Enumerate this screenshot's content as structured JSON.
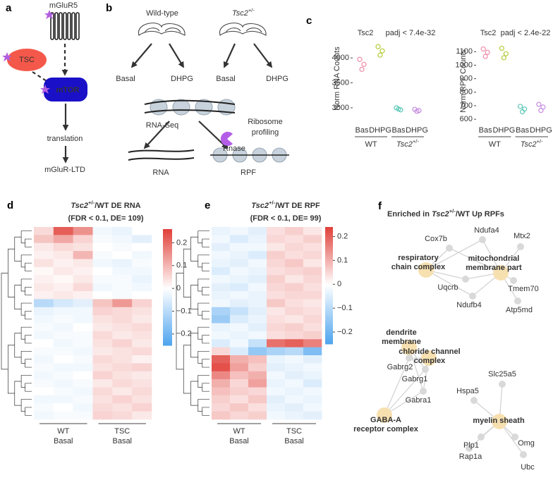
{
  "panel_labels": [
    "a",
    "b",
    "c",
    "d",
    "e",
    "f"
  ],
  "pathway": {
    "receptor": "mGluR5",
    "inhibitor": "TSC",
    "kinase": "mTOR",
    "process": "translation",
    "outcome": "mGluR-LTD"
  },
  "design": {
    "genotypes": [
      {
        "text": "Wild-type"
      },
      {
        "text": "Tsc2",
        "sup": "+/-"
      }
    ],
    "conditions": [
      "Basal",
      "DHPG",
      "Basal",
      "DHPG"
    ],
    "methods": {
      "rna": "RNA-Seq",
      "ribo": [
        "Ribosome",
        "profiling"
      ]
    },
    "enzyme": "Rnase",
    "products": [
      "RNA",
      "RPF"
    ]
  },
  "chart_data": [
    {
      "type": "strip",
      "title": "Tsc2",
      "annotation": "padj < 7.4e-32",
      "y_label": "Norm RNA Counts",
      "categories": [
        "Bas",
        "DHPG",
        "Bas",
        "DHPG"
      ],
      "groups": [
        {
          "text": "WT"
        },
        {
          "text": "Tsc2",
          "sup": "+/-"
        }
      ],
      "series": [
        {
          "color": "#f08ca8",
          "values": [
            3970,
            3870,
            3770
          ]
        },
        {
          "color": "#b5cc3a",
          "values": [
            4225,
            4140,
            4055
          ]
        },
        {
          "color": "#5cc8b8",
          "values": [
            3000,
            2960,
            2975
          ]
        },
        {
          "color": "#c58be0",
          "values": [
            2970,
            2945,
            2930
          ]
        }
      ],
      "ylim": [
        2830,
        4340
      ],
      "yticks": [
        3000,
        3500,
        4000
      ]
    },
    {
      "type": "strip",
      "title": "Tsc2",
      "annotation": "padj < 2.4e-22",
      "y_label": "Norm RPF Counts",
      "categories": [
        "Bas",
        "DHPG",
        "Bas",
        "DHPG"
      ],
      "groups": [
        {
          "text": "WT"
        },
        {
          "text": "Tsc2",
          "sup": "+/-"
        }
      ],
      "series": [
        {
          "color": "#f08ca8",
          "values": [
            1120,
            1095,
            1065
          ]
        },
        {
          "color": "#b5cc3a",
          "values": [
            1125,
            1085,
            1055
          ]
        },
        {
          "color": "#5cc8b8",
          "values": [
            695,
            675,
            655
          ]
        },
        {
          "color": "#c58be0",
          "values": [
            710,
            690,
            665
          ]
        }
      ],
      "ylim": [
        585,
        1180
      ],
      "yticks": [
        600,
        700,
        800,
        900,
        1000,
        1100
      ]
    },
    {
      "type": "heatmap",
      "title": {
        "text": "Tsc2",
        "sup": "+/-",
        "after": "/WT DE RNA"
      },
      "subtitle": "(FDR < 0.1, DE= 109)",
      "column_groups": [
        [
          "WT",
          "Basal"
        ],
        [
          "TSC",
          "Basal"
        ]
      ],
      "colormap": [
        "#4da3ee",
        "#ffffff",
        "#e0413a"
      ],
      "clim": [
        -0.25,
        0.26
      ],
      "cticks": [
        0.2,
        0.1,
        0,
        {
          "value": -0.1,
          "label": "−0.1"
        },
        {
          "value": -0.2,
          "label": "−0.2"
        }
      ],
      "values": [
        [
          0.05,
          0.22,
          0.15,
          -0.02,
          -0.03,
          0.0
        ],
        [
          0.08,
          0.12,
          0.06,
          -0.01,
          -0.02,
          -0.04
        ],
        [
          0.03,
          0.05,
          0.04,
          0.0,
          -0.01,
          0.0
        ],
        [
          0.02,
          0.03,
          0.1,
          -0.01,
          0.0,
          -0.02
        ],
        [
          0.04,
          0.02,
          0.03,
          -0.02,
          -0.03,
          -0.01
        ],
        [
          0.01,
          0.03,
          0.02,
          0.0,
          -0.02,
          -0.02
        ],
        [
          0.02,
          0.01,
          0.03,
          -0.01,
          -0.01,
          -0.03
        ],
        [
          0.03,
          0.02,
          0.05,
          -0.02,
          -0.01,
          -0.02
        ],
        [
          0.02,
          0.03,
          0.02,
          0.0,
          -0.01,
          0.0
        ],
        [
          -0.1,
          -0.06,
          -0.04,
          0.08,
          0.14,
          0.06
        ],
        [
          -0.03,
          -0.02,
          -0.02,
          0.06,
          0.05,
          0.04
        ],
        [
          -0.02,
          -0.01,
          -0.02,
          0.04,
          0.05,
          0.03
        ],
        [
          -0.01,
          -0.02,
          0.0,
          0.03,
          0.04,
          0.05
        ],
        [
          -0.02,
          -0.01,
          -0.01,
          0.05,
          0.03,
          0.04
        ],
        [
          0.0,
          -0.02,
          -0.01,
          0.04,
          0.06,
          0.03
        ],
        [
          -0.01,
          -0.01,
          -0.02,
          0.03,
          0.04,
          0.05
        ],
        [
          -0.02,
          0.0,
          -0.01,
          0.05,
          0.04,
          0.02
        ],
        [
          -0.01,
          -0.02,
          -0.02,
          0.04,
          0.05,
          0.06
        ],
        [
          -0.02,
          -0.01,
          0.0,
          0.06,
          0.04,
          0.03
        ],
        [
          -0.01,
          -0.02,
          -0.01,
          0.03,
          0.05,
          0.04
        ],
        [
          0.0,
          -0.01,
          -0.02,
          0.05,
          0.03,
          0.05
        ],
        [
          -0.02,
          -0.02,
          -0.01,
          0.04,
          0.06,
          0.04
        ],
        [
          -0.01,
          0.0,
          -0.02,
          0.05,
          0.04,
          0.06
        ],
        [
          -0.02,
          -0.01,
          -0.01,
          0.06,
          0.05,
          0.03
        ]
      ]
    },
    {
      "type": "heatmap",
      "title": {
        "text": "Tsc2",
        "sup": "+/-",
        "after": "/WT DE RPF"
      },
      "subtitle": "(FDR < 0.1, DE= 99)",
      "column_groups": [
        [
          "WT",
          "Basal"
        ],
        [
          "TSC",
          "Basal"
        ]
      ],
      "colormap": [
        "#4da3ee",
        "#ffffff",
        "#e0413a"
      ],
      "clim": [
        -0.25,
        0.24
      ],
      "cticks": [
        0.2,
        0.1,
        0,
        {
          "value": -0.1,
          "label": "−0.1"
        },
        {
          "value": -0.2,
          "label": "−0.2"
        }
      ],
      "values": [
        [
          -0.03,
          -0.02,
          -0.04,
          0.04,
          0.06,
          0.03
        ],
        [
          -0.02,
          -0.05,
          -0.03,
          0.05,
          0.04,
          0.06
        ],
        [
          -0.04,
          -0.02,
          -0.02,
          0.03,
          0.05,
          0.04
        ],
        [
          -0.02,
          -0.03,
          -0.05,
          0.06,
          0.04,
          0.05
        ],
        [
          -0.03,
          -0.04,
          -0.02,
          0.05,
          0.07,
          0.03
        ],
        [
          -0.05,
          -0.02,
          -0.03,
          0.04,
          0.05,
          0.06
        ],
        [
          -0.02,
          -0.03,
          -0.04,
          0.06,
          0.03,
          0.05
        ],
        [
          -0.04,
          -0.05,
          -0.02,
          0.05,
          0.06,
          0.04
        ],
        [
          -0.03,
          -0.02,
          -0.03,
          0.04,
          0.05,
          0.05
        ],
        [
          -0.02,
          -0.04,
          -0.03,
          0.07,
          0.04,
          0.03
        ],
        [
          -0.12,
          -0.08,
          -0.04,
          0.03,
          0.05,
          0.04
        ],
        [
          -0.14,
          -0.05,
          -0.03,
          0.04,
          0.03,
          0.05
        ],
        [
          -0.03,
          -0.02,
          -0.04,
          0.05,
          0.06,
          0.04
        ],
        [
          -0.02,
          -0.03,
          -0.02,
          0.04,
          0.05,
          0.06
        ],
        [
          -0.05,
          -0.02,
          -0.08,
          0.18,
          0.2,
          0.16
        ],
        [
          0.05,
          -0.05,
          -0.15,
          -0.12,
          -0.1,
          -0.18
        ],
        [
          0.2,
          0.1,
          0.08,
          -0.03,
          -0.02,
          -0.04
        ],
        [
          0.22,
          0.12,
          0.06,
          -0.04,
          -0.03,
          -0.02
        ],
        [
          0.15,
          0.08,
          0.1,
          -0.02,
          -0.04,
          -0.03
        ],
        [
          0.1,
          0.05,
          0.12,
          -0.03,
          -0.02,
          -0.05
        ],
        [
          0.08,
          0.06,
          0.05,
          -0.02,
          -0.03,
          -0.02
        ],
        [
          0.06,
          0.04,
          0.07,
          -0.04,
          -0.02,
          -0.03
        ],
        [
          0.05,
          0.07,
          0.04,
          -0.03,
          -0.04,
          -0.02
        ],
        [
          0.07,
          0.05,
          0.06,
          -0.02,
          -0.03,
          -0.04
        ]
      ]
    }
  ],
  "network": {
    "title": {
      "before": "Enriched in ",
      "text": "Tsc2",
      "sup": "+/-",
      "after": "/WT Up RPFs"
    },
    "nodes": [
      {
        "kind": "gene",
        "label": [
          "Cox7b"
        ]
      },
      {
        "kind": "gene",
        "label": [
          "Ndufa4"
        ]
      },
      {
        "kind": "gene",
        "label": [
          "Mtx2"
        ]
      },
      {
        "kind": "term",
        "label": [
          "respiratory",
          "chain complex"
        ]
      },
      {
        "kind": "term",
        "label": [
          "mitochondrial",
          "membrane part"
        ]
      },
      {
        "kind": "gene",
        "label": [
          "Uqcrb"
        ]
      },
      {
        "kind": "gene",
        "label": [
          "Tmem70"
        ]
      },
      {
        "kind": "gene",
        "label": [
          "Ndufb4"
        ]
      },
      {
        "kind": "gene",
        "label": [
          "Atp5md"
        ]
      },
      {
        "kind": "term",
        "label": [
          "dendrite",
          "membrane"
        ]
      },
      {
        "kind": "term",
        "label": [
          "chloride channel",
          "complex"
        ]
      },
      {
        "kind": "gene",
        "label": [
          "Gabrg2"
        ]
      },
      {
        "kind": "gene",
        "label": [
          "Gabrg1"
        ]
      },
      {
        "kind": "gene",
        "label": [
          "Gabra1"
        ]
      },
      {
        "kind": "term",
        "label": [
          "GABA-A",
          "receptor complex"
        ]
      },
      {
        "kind": "gene",
        "label": [
          "Slc25a5"
        ]
      },
      {
        "kind": "gene",
        "label": [
          "Hspa5"
        ]
      },
      {
        "kind": "term",
        "label": [
          "myelin sheath"
        ]
      },
      {
        "kind": "gene",
        "label": [
          "Omg"
        ]
      },
      {
        "kind": "gene",
        "label": [
          "Plp1"
        ]
      },
      {
        "kind": "gene",
        "label": [
          "Rap1a"
        ]
      },
      {
        "kind": "gene",
        "label": [
          "Ubc"
        ]
      }
    ]
  }
}
